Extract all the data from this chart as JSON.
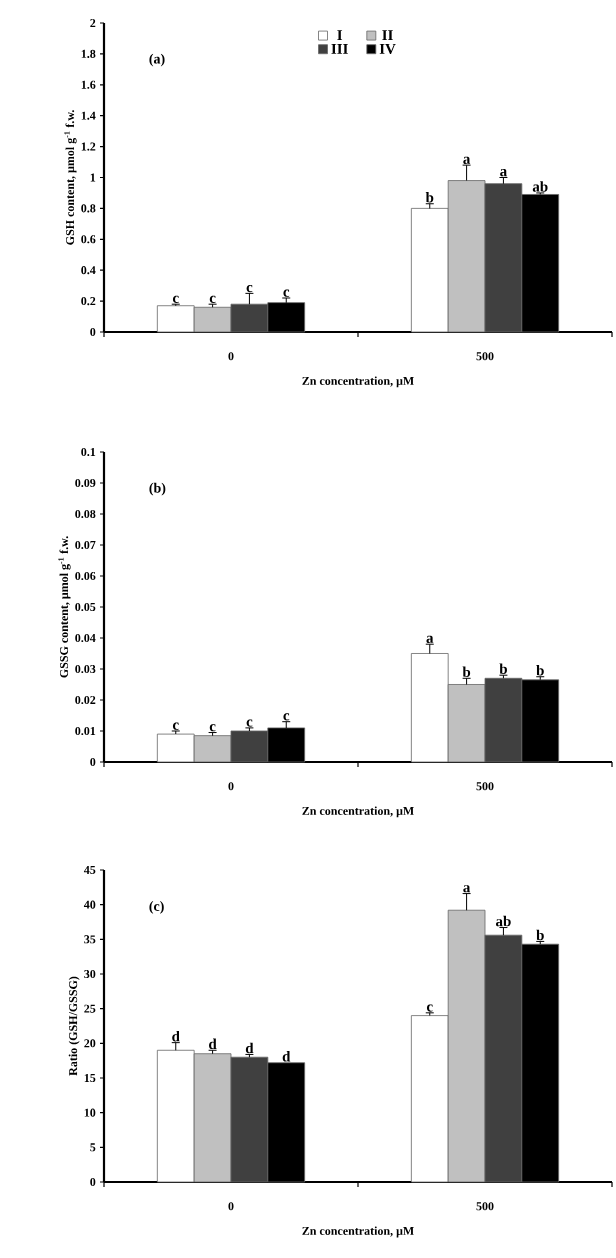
{
  "chart_data": [
    {
      "type": "bar",
      "categories": [
        "0",
        "500"
      ],
      "xlabel": "Zn concentration, μM",
      "ylabel": "GSH content, μmol g$^{-1}$ f.w.",
      "ylim": [
        0,
        2
      ],
      "yticks": [
        0,
        0.2,
        0.4,
        0.6,
        0.8,
        1,
        1.2,
        1.4,
        1.6,
        1.8,
        2
      ],
      "legend": "top",
      "annotations": [
        "(a)"
      ],
      "series": [
        {
          "name": "I",
          "color": "#ffffff",
          "values": [
            0.17,
            0.8
          ],
          "errors": [
            0.01,
            0.03
          ],
          "value_labels": [
            "c",
            "b"
          ]
        },
        {
          "name": "II",
          "color": "#c0c0c0",
          "values": [
            0.16,
            0.98
          ],
          "errors": [
            0.02,
            0.1
          ],
          "value_labels": [
            "c",
            "a"
          ]
        },
        {
          "name": "III",
          "color": "#404040",
          "values": [
            0.18,
            0.96
          ],
          "errors": [
            0.07,
            0.04
          ],
          "value_labels": [
            "c",
            "a"
          ]
        },
        {
          "name": "IV",
          "color": "#000000",
          "values": [
            0.19,
            0.89
          ],
          "errors": [
            0.03,
            0.01
          ],
          "value_labels": [
            "c",
            "ab"
          ]
        }
      ]
    },
    {
      "type": "bar",
      "categories": [
        "0",
        "500"
      ],
      "xlabel": "Zn concentration, μM",
      "ylabel": "GSSG content, μmol g$^{-1}$ f.w.",
      "ylim": [
        0,
        0.1
      ],
      "yticks": [
        0,
        0.01,
        0.02,
        0.03,
        0.04,
        0.05,
        0.06,
        0.07,
        0.08,
        0.09,
        0.1
      ],
      "legend": false,
      "annotations": [
        "(b)"
      ],
      "series": [
        {
          "color": "#ffffff",
          "values": [
            0.009,
            0.035
          ],
          "errors": [
            0.001,
            0.003
          ],
          "value_labels": [
            "c",
            "a"
          ]
        },
        {
          "color": "#c0c0c0",
          "values": [
            0.0085,
            0.025
          ],
          "errors": [
            0.001,
            0.002
          ],
          "value_labels": [
            "c",
            "b"
          ]
        },
        {
          "color": "#404040",
          "values": [
            0.01,
            0.027
          ],
          "errors": [
            0.001,
            0.001
          ],
          "value_labels": [
            "c",
            "b"
          ]
        },
        {
          "color": "#000000",
          "values": [
            0.011,
            0.0265
          ],
          "errors": [
            0.002,
            0.001
          ],
          "value_labels": [
            "c",
            "b"
          ]
        }
      ]
    },
    {
      "type": "bar",
      "categories": [
        "0",
        "500"
      ],
      "xlabel": "Zn concentration, μM",
      "ylabel": "Ratio (GSH/GSSG)",
      "ylim": [
        0,
        45
      ],
      "yticks": [
        0,
        5,
        10,
        15,
        20,
        25,
        30,
        35,
        40,
        45
      ],
      "legend": false,
      "annotations": [
        "(c)"
      ],
      "series": [
        {
          "color": "#ffffff",
          "values": [
            19,
            24
          ],
          "errors": [
            1.1,
            0.4
          ],
          "value_labels": [
            "d",
            "c"
          ]
        },
        {
          "color": "#c0c0c0",
          "values": [
            18.5,
            39.2
          ],
          "errors": [
            0.5,
            2.4
          ],
          "value_labels": [
            "d",
            "a"
          ]
        },
        {
          "color": "#404040",
          "values": [
            18,
            35.6
          ],
          "errors": [
            0.4,
            1.1
          ],
          "value_labels": [
            "d",
            "ab"
          ]
        },
        {
          "color": "#000000",
          "values": [
            17.2,
            34.3
          ],
          "errors": [
            null,
            0.4
          ],
          "value_labels": [
            "d",
            "b"
          ]
        }
      ]
    }
  ]
}
